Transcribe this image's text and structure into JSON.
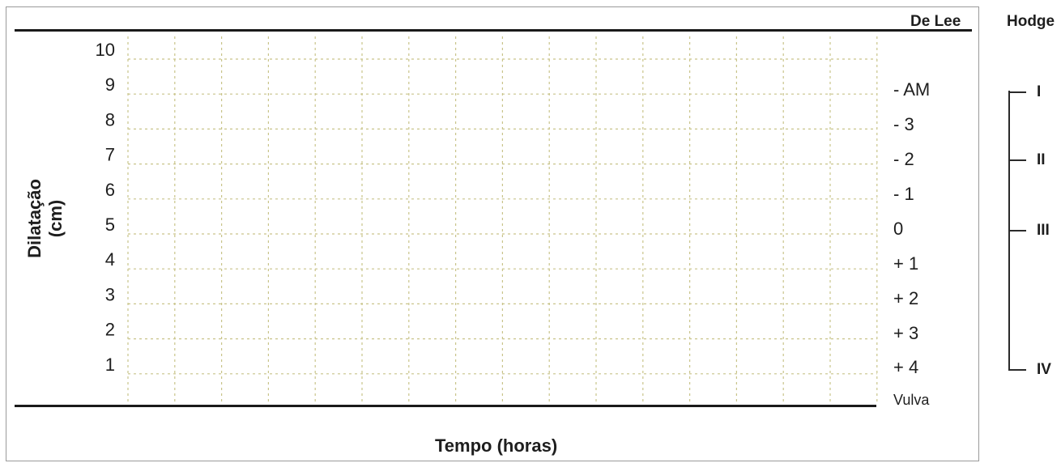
{
  "chart_data": {
    "type": "line",
    "ylabel_line1": "Dilatação",
    "ylabel_line2": "(cm)",
    "xlabel": "Tempo (horas)",
    "y_ticks": [
      "10",
      "9",
      "8",
      "7",
      "6",
      "5",
      "4",
      "3",
      "2",
      "1"
    ],
    "ylim": [
      0,
      10
    ],
    "x_columns": 16,
    "grid": true,
    "series": []
  },
  "de_lee": {
    "title": "De Lee",
    "labels": [
      "- AM",
      "- 3",
      "- 2",
      "- 1",
      "0",
      "+ 1",
      "+ 2",
      "+ 3",
      "+ 4",
      "Vulva"
    ]
  },
  "hodge": {
    "title": "Hodge",
    "planes": [
      "I",
      "II",
      "III",
      "IV"
    ]
  },
  "colors": {
    "grid": "#c9c48a",
    "rule": "#1a1a1a",
    "text": "#1e1e1e",
    "frame": "#9a9a9a"
  }
}
